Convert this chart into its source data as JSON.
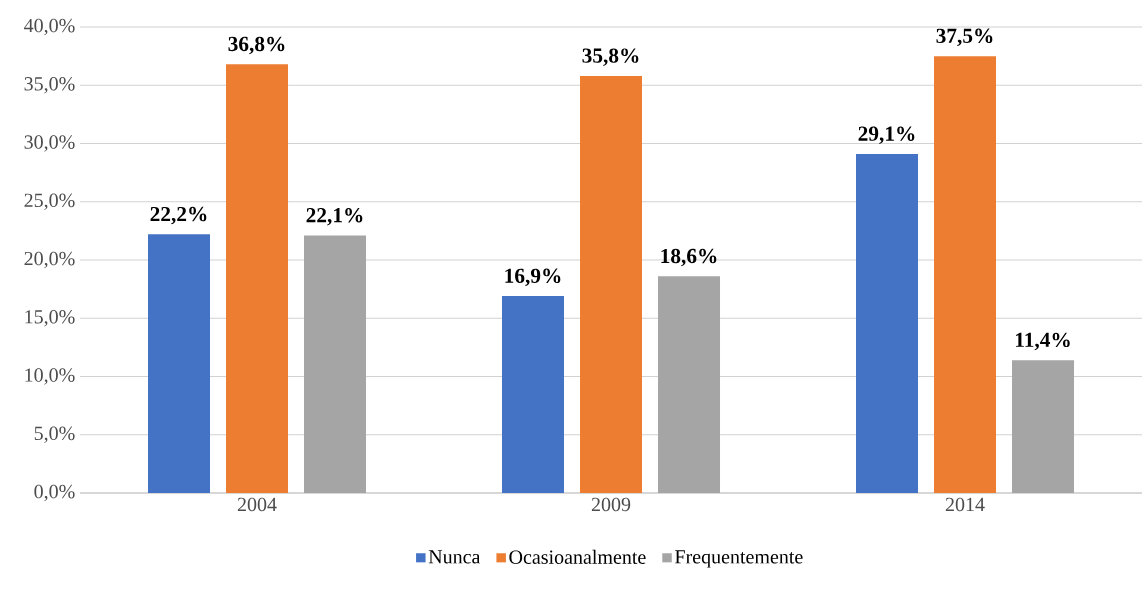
{
  "chart_data": {
    "type": "bar",
    "categories": [
      "2004",
      "2009",
      "2014"
    ],
    "series": [
      {
        "name": "Nunca",
        "color": "#4472c4",
        "values": [
          22.2,
          16.9,
          29.1
        ],
        "value_labels": [
          "22,2%",
          "16,9%",
          "29,1%"
        ]
      },
      {
        "name": "Ocasioanalmente",
        "color": "#ed7d31",
        "values": [
          36.8,
          35.8,
          37.5
        ],
        "value_labels": [
          "36,8%",
          "35,8%",
          "37,5%"
        ]
      },
      {
        "name": "Frequentemente",
        "color": "#a5a5a5",
        "values": [
          22.1,
          18.6,
          11.4
        ],
        "value_labels": [
          "22,1%",
          "18,6%",
          "11,4%"
        ]
      }
    ],
    "ylim": [
      0,
      40
    ],
    "yticks": [
      {
        "value": 0,
        "label": "0,0%"
      },
      {
        "value": 5,
        "label": "5,0%"
      },
      {
        "value": 10,
        "label": "10,0%"
      },
      {
        "value": 15,
        "label": "15,0%"
      },
      {
        "value": 20,
        "label": "20,0%"
      },
      {
        "value": 25,
        "label": "25,0%"
      },
      {
        "value": 30,
        "label": "30,0%"
      },
      {
        "value": 35,
        "label": "35,0%"
      },
      {
        "value": 40,
        "label": "40,0%"
      }
    ],
    "grid": "y",
    "legend": "bottom"
  }
}
